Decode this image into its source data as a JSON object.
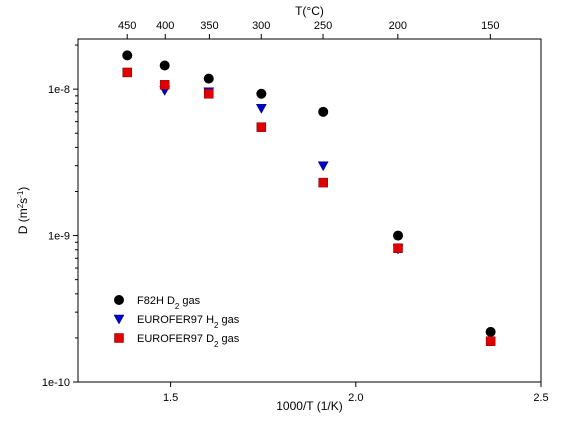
{
  "chart_data": {
    "type": "scatter",
    "xlabel": "1000/T (1/K)",
    "x2label": "T(°C)",
    "ylabel_parts": [
      "D (m",
      "2",
      "s",
      "-1",
      ")"
    ],
    "xlim": [
      1.25,
      2.5
    ],
    "ylim": [
      1e-10,
      2.2e-08
    ],
    "yscale": "log",
    "grid": false,
    "legend": "lower-left",
    "x_ticks": [
      1.5,
      2.0,
      2.5
    ],
    "x_tick_labels": [
      "1.5",
      "2.0",
      "2.5"
    ],
    "y_ticks": [
      1e-10,
      1e-09,
      1e-08
    ],
    "y_tick_labels": [
      "1e-10",
      "1e-9",
      "1e-8"
    ],
    "x2_ticks": [
      450,
      400,
      350,
      300,
      250,
      200,
      150
    ],
    "x2_tick_labels": [
      "450",
      "400",
      "350",
      "300",
      "250",
      "200",
      "150"
    ],
    "series": [
      {
        "legend_parts": [
          "F82H D",
          "2",
          " gas"
        ],
        "marker": "circle",
        "color": "#000000",
        "x": [
          1.383,
          1.484,
          1.603,
          1.745,
          1.912,
          2.114,
          2.364
        ],
        "y": [
          1.7e-08,
          1.45e-08,
          1.18e-08,
          9.3e-09,
          7e-09,
          1e-09,
          2.2e-10
        ]
      },
      {
        "legend_parts": [
          "EUROFER97 H",
          "2",
          " gas"
        ],
        "marker": "triangle-down",
        "color": "#0000cc",
        "x": [
          1.484,
          1.603,
          1.745,
          1.912,
          2.114
        ],
        "y": [
          9.8e-09,
          9.6e-09,
          7.4e-09,
          3e-09,
          8.1e-10
        ]
      },
      {
        "legend_parts": [
          "EUROFER97 D",
          "2",
          " gas"
        ],
        "marker": "square",
        "color": "#e00000",
        "x": [
          1.383,
          1.484,
          1.603,
          1.745,
          1.912,
          2.114,
          2.364
        ],
        "y": [
          1.3e-08,
          1.07e-08,
          9.3e-09,
          5.5e-09,
          2.3e-09,
          8.2e-10,
          1.9e-10
        ]
      }
    ]
  }
}
